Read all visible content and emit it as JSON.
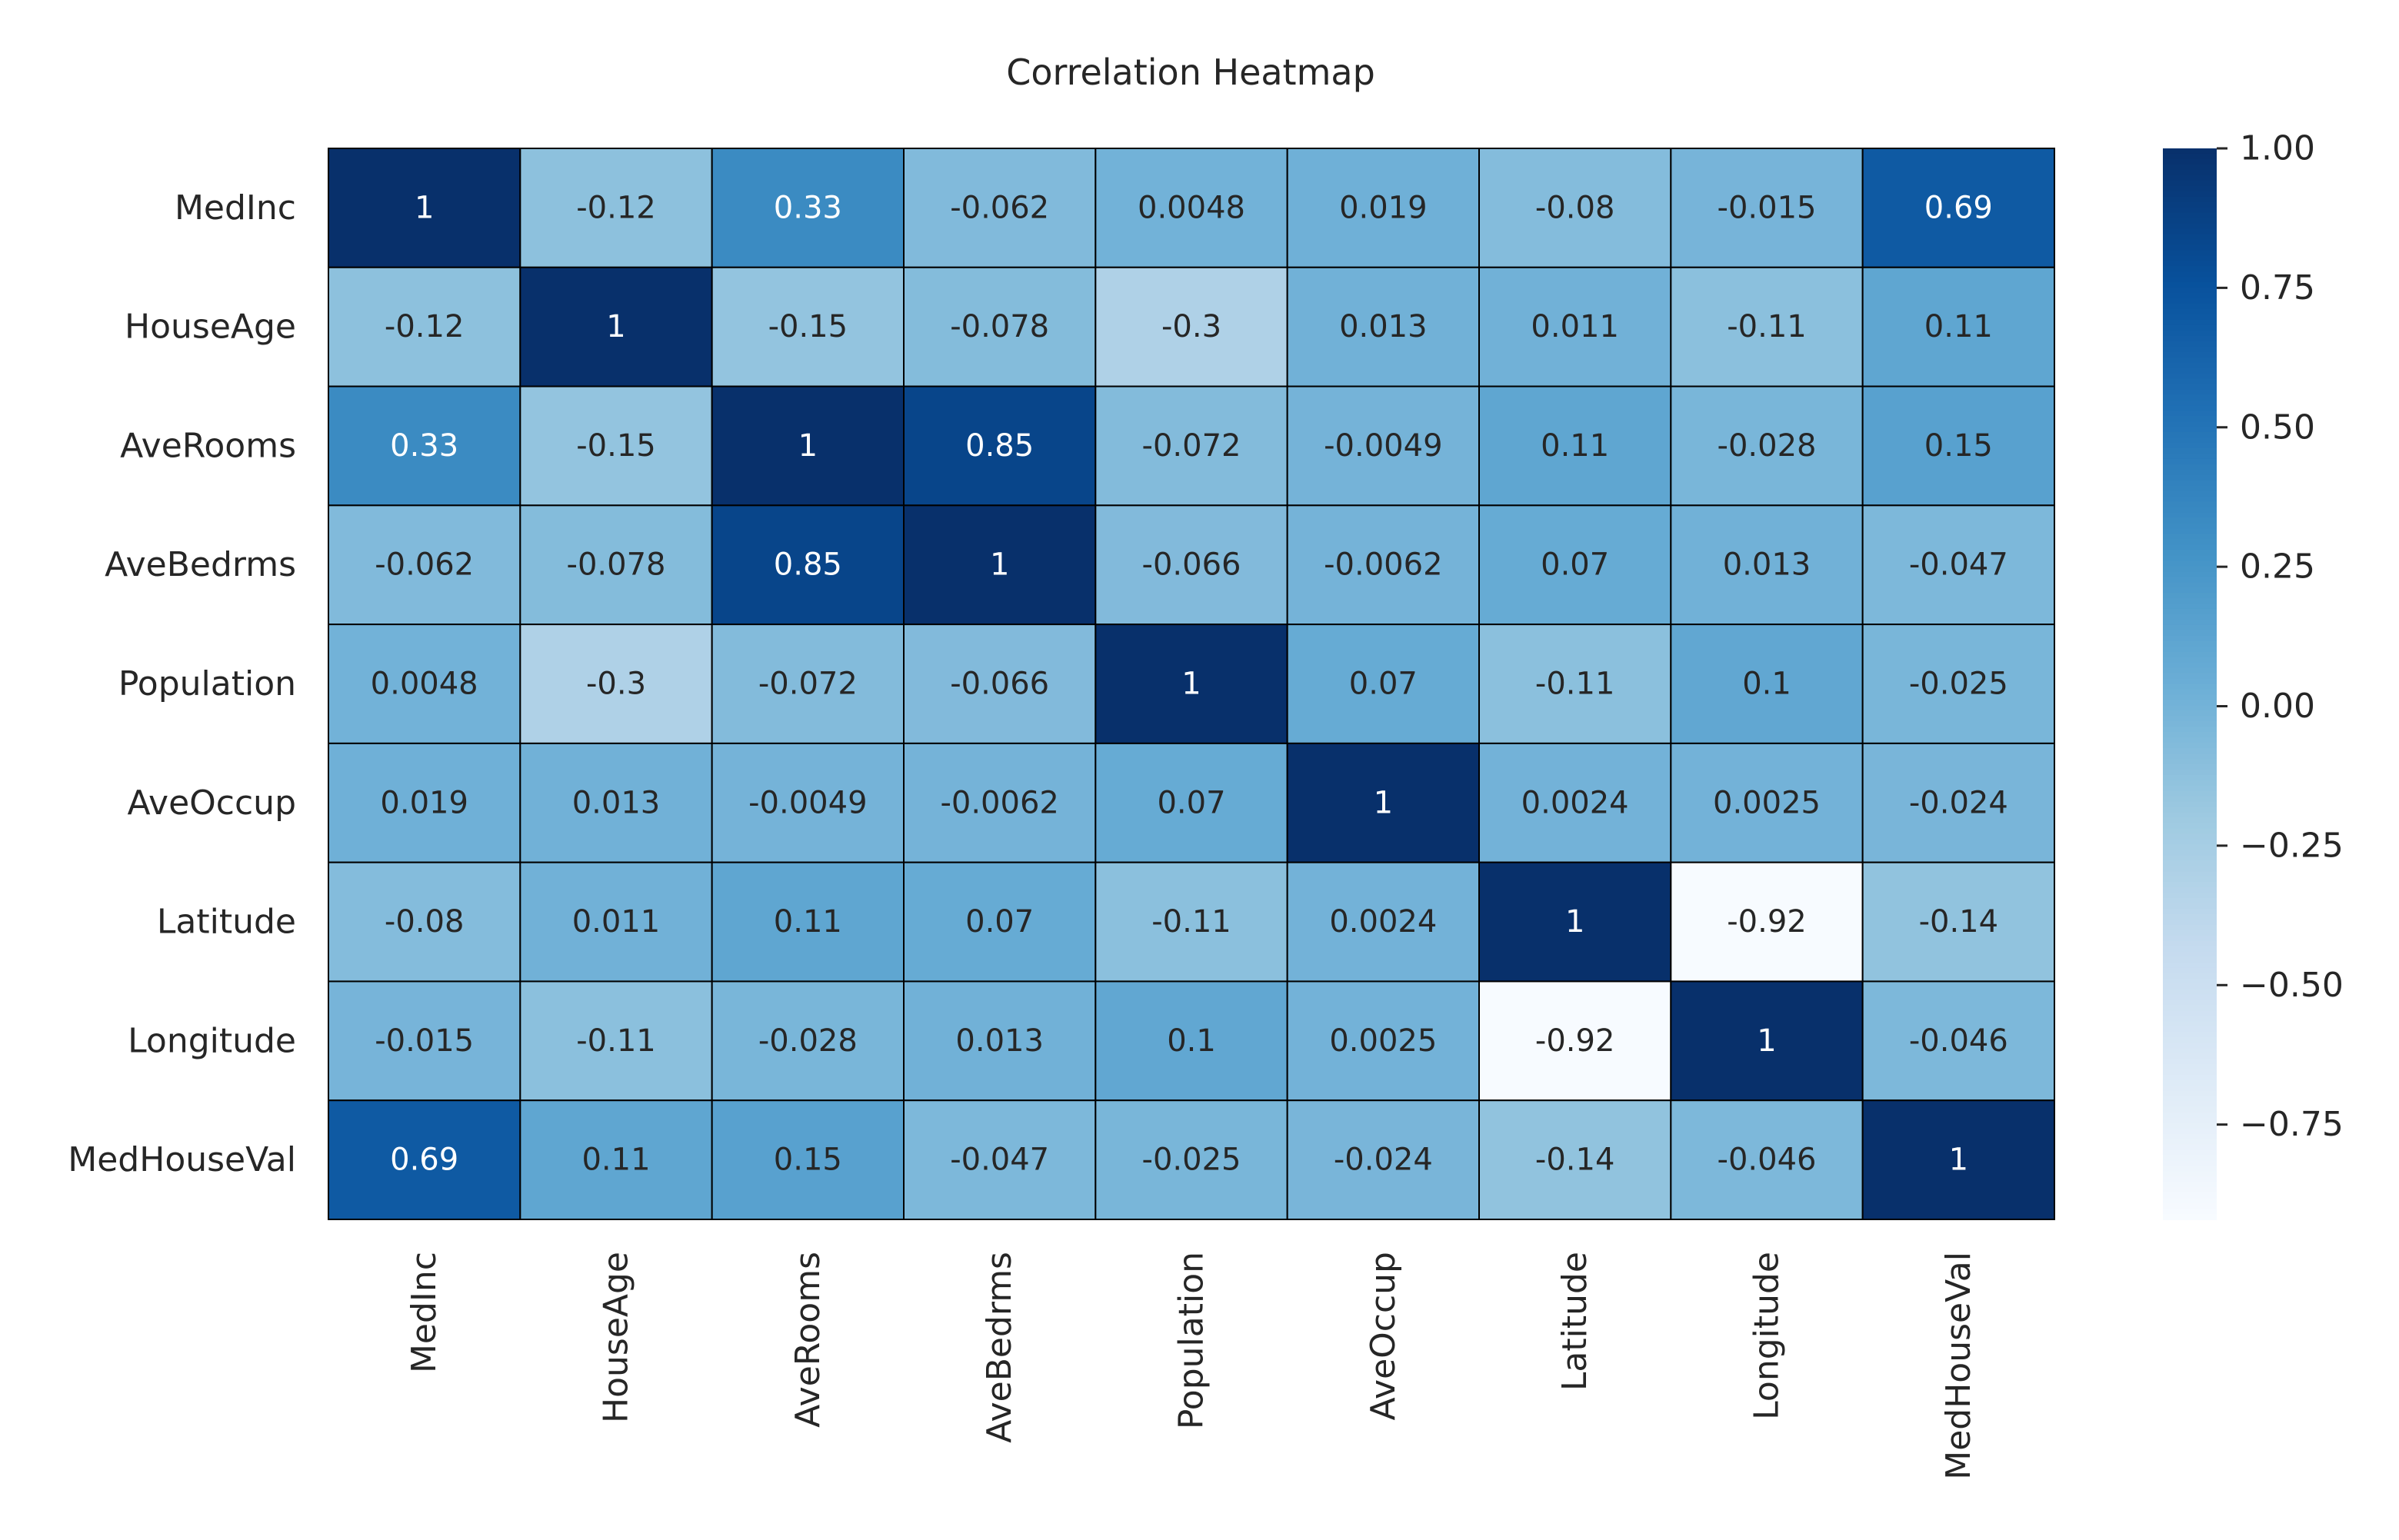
{
  "chart_data": {
    "type": "heatmap",
    "title": "Correlation Heatmap",
    "variables": [
      "MedInc",
      "HouseAge",
      "AveRooms",
      "AveBedrms",
      "Population",
      "AveOccup",
      "Latitude",
      "Longitude",
      "MedHouseVal"
    ],
    "values": [
      [
        1,
        -0.12,
        0.33,
        -0.062,
        0.0048,
        0.019,
        -0.08,
        -0.015,
        0.69
      ],
      [
        -0.12,
        1,
        -0.15,
        -0.078,
        -0.3,
        0.013,
        0.011,
        -0.11,
        0.11
      ],
      [
        0.33,
        -0.15,
        1,
        0.85,
        -0.072,
        -0.0049,
        0.11,
        -0.028,
        0.15
      ],
      [
        -0.062,
        -0.078,
        0.85,
        1,
        -0.066,
        -0.0062,
        0.07,
        0.013,
        -0.047
      ],
      [
        0.0048,
        -0.3,
        -0.072,
        -0.066,
        1,
        0.07,
        -0.11,
        0.1,
        -0.025
      ],
      [
        0.019,
        0.013,
        -0.0049,
        -0.0062,
        0.07,
        1,
        0.0024,
        0.0025,
        -0.024
      ],
      [
        -0.08,
        0.011,
        0.11,
        0.07,
        -0.11,
        0.0024,
        1,
        -0.92,
        -0.14
      ],
      [
        -0.015,
        -0.11,
        -0.028,
        0.013,
        0.1,
        0.0025,
        -0.92,
        1,
        -0.046
      ],
      [
        0.69,
        0.11,
        0.15,
        -0.047,
        -0.025,
        -0.024,
        -0.14,
        -0.046,
        1
      ]
    ],
    "labels": [
      [
        "1",
        "-0.12",
        "0.33",
        "-0.062",
        "0.0048",
        "0.019",
        "-0.08",
        "-0.015",
        "0.69"
      ],
      [
        "-0.12",
        "1",
        "-0.15",
        "-0.078",
        "-0.3",
        "0.013",
        "0.011",
        "-0.11",
        "0.11"
      ],
      [
        "0.33",
        "-0.15",
        "1",
        "0.85",
        "-0.072",
        "-0.0049",
        "0.11",
        "-0.028",
        "0.15"
      ],
      [
        "-0.062",
        "-0.078",
        "0.85",
        "1",
        "-0.066",
        "-0.0062",
        "0.07",
        "0.013",
        "-0.047"
      ],
      [
        "0.0048",
        "-0.3",
        "-0.072",
        "-0.066",
        "1",
        "0.07",
        "-0.11",
        "0.1",
        "-0.025"
      ],
      [
        "0.019",
        "0.013",
        "-0.0049",
        "-0.0062",
        "0.07",
        "1",
        "0.0024",
        "0.0025",
        "-0.024"
      ],
      [
        "-0.08",
        "0.011",
        "0.11",
        "0.07",
        "-0.11",
        "0.0024",
        "1",
        "-0.92",
        "-0.14"
      ],
      [
        "-0.015",
        "-0.11",
        "-0.028",
        "0.013",
        "0.1",
        "0.0025",
        "-0.92",
        "1",
        "-0.046"
      ],
      [
        "0.69",
        "0.11",
        "0.15",
        "-0.047",
        "-0.025",
        "-0.024",
        "-0.14",
        "-0.046",
        "1"
      ]
    ],
    "colormap": "Blues",
    "vmin": -0.92,
    "vmax": 1,
    "colorbar": {
      "ticks": [
        1.0,
        0.75,
        0.5,
        0.25,
        0.0,
        -0.25,
        -0.5,
        -0.75
      ],
      "tick_labels": [
        "1.00",
        "0.75",
        "0.50",
        "0.25",
        "0.00",
        "−0.25",
        "−0.50",
        "−0.75"
      ],
      "placement": "right"
    },
    "annotated": true,
    "xlabel": "",
    "ylabel": "",
    "colors": {
      "text_dark": "#262626",
      "text_light": "#ffffff",
      "cell_border": "#000000"
    }
  }
}
